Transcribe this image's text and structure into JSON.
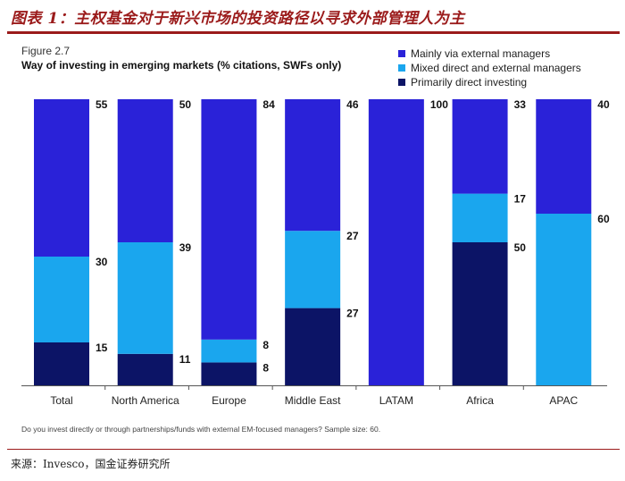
{
  "header": {
    "title": "图表 1：主权基金对于新兴市场的投资路径以寻求外部管理人为主"
  },
  "figure": {
    "label": "Figure 2.7",
    "title": "Way of investing in emerging markets (% citations, SWFs only)"
  },
  "chart_data": {
    "type": "bar",
    "stacked": true,
    "title": "Way of investing in emerging markets (% citations, SWFs only)",
    "xlabel": "",
    "ylabel": "",
    "ylim": [
      0,
      100
    ],
    "grid": false,
    "legend_position": "top-right",
    "categories": [
      "Total",
      "North America",
      "Europe",
      "Middle East",
      "LATAM",
      "Africa",
      "APAC"
    ],
    "series": [
      {
        "name": "Primarily direct investing",
        "color": "#0c1466",
        "values": [
          15,
          11,
          8,
          27,
          0,
          50,
          0
        ]
      },
      {
        "name": "Mixed direct and external managers",
        "color": "#1aa6ee",
        "values": [
          30,
          39,
          8,
          27,
          0,
          17,
          60
        ]
      },
      {
        "name": "Mainly via external managers",
        "color": "#2a22d8",
        "values": [
          55,
          50,
          84,
          46,
          100,
          33,
          40
        ]
      }
    ],
    "legend_order": [
      "Mainly via external managers",
      "Mixed direct and external managers",
      "Primarily direct investing"
    ]
  },
  "footnote": "Do you invest directly or through partnerships/funds with external EM-focused managers? Sample size: 60.",
  "source": "来源：Invesco，国金证券研究所"
}
